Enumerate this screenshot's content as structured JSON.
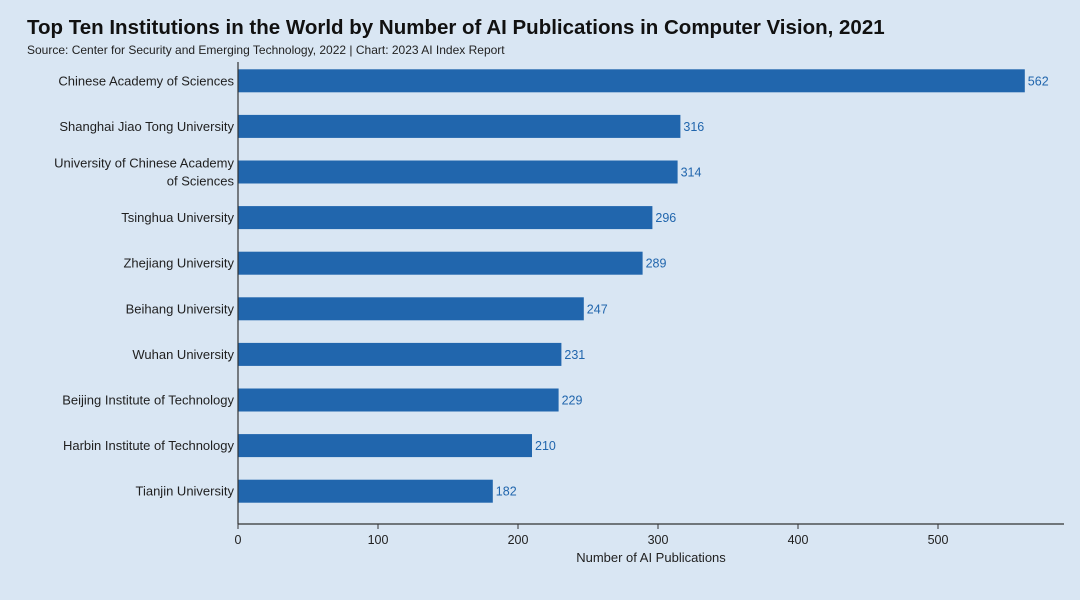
{
  "header": {
    "title": "Top Ten Institutions in the World by Number of AI Publications in Computer Vision, 2021",
    "subtitle": "Source: Center for Security and Emerging Technology, 2022 | Chart: 2023 AI Index Report"
  },
  "colors": {
    "bar": "#2166ad",
    "value_label": "#2166ad",
    "background": "#d9e6f3",
    "axis": "#333333"
  },
  "chart_data": {
    "type": "bar",
    "orientation": "horizontal",
    "title": "Top Ten Institutions in the World by Number of AI Publications in Computer Vision, 2021",
    "xlabel": "Number of AI Publications",
    "ylabel": "",
    "xlim": [
      0,
      590
    ],
    "xticks": [
      0,
      100,
      200,
      300,
      400,
      500
    ],
    "grid": false,
    "categories": [
      [
        "Chinese Academy of Sciences"
      ],
      [
        "Shanghai Jiao Tong University"
      ],
      [
        "University of Chinese Academy",
        "of Sciences"
      ],
      [
        "Tsinghua University"
      ],
      [
        "Zhejiang University"
      ],
      [
        "Beihang University"
      ],
      [
        "Wuhan University"
      ],
      [
        "Beijing Institute of Technology"
      ],
      [
        "Harbin Institute of Technology"
      ],
      [
        "Tianjin University"
      ]
    ],
    "values": [
      562,
      316,
      314,
      296,
      289,
      247,
      231,
      229,
      210,
      182
    ]
  }
}
